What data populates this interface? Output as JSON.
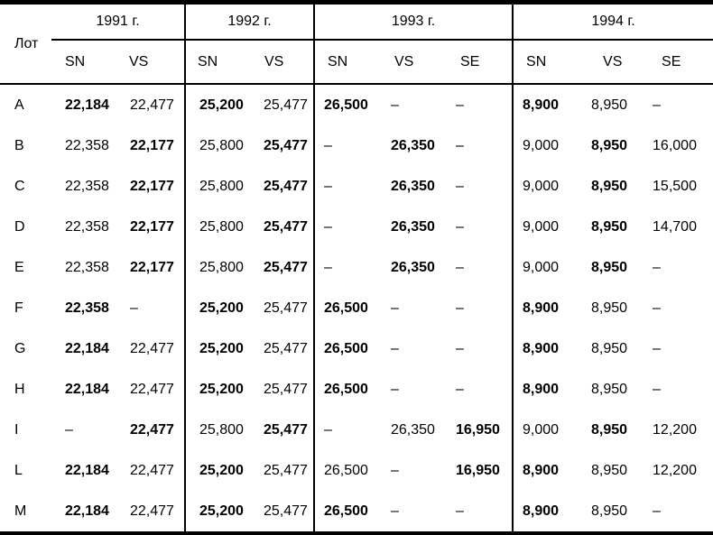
{
  "table": {
    "lot_header": "Лот",
    "year_groups": [
      {
        "label": "1991 г.",
        "cols": [
          "SN",
          "VS"
        ]
      },
      {
        "label": "1992 г.",
        "cols": [
          "SN",
          "VS"
        ]
      },
      {
        "label": "1993 г.",
        "cols": [
          "SN",
          "VS",
          "SE"
        ]
      },
      {
        "label": "1994 г.",
        "cols": [
          "SN",
          "VS",
          "SE"
        ]
      }
    ],
    "rows": [
      {
        "lot": "A",
        "cells": [
          {
            "v": "22,184",
            "b": true
          },
          {
            "v": "22,477",
            "b": false
          },
          {
            "v": "25,200",
            "b": true
          },
          {
            "v": "25,477",
            "b": false
          },
          {
            "v": "26,500",
            "b": true
          },
          {
            "v": "–",
            "b": false
          },
          {
            "v": "–",
            "b": false
          },
          {
            "v": "8,900",
            "b": true
          },
          {
            "v": "8,950",
            "b": false
          },
          {
            "v": "–",
            "b": false
          }
        ]
      },
      {
        "lot": "B",
        "cells": [
          {
            "v": "22,358",
            "b": false
          },
          {
            "v": "22,177",
            "b": true
          },
          {
            "v": "25,800",
            "b": false
          },
          {
            "v": "25,477",
            "b": true
          },
          {
            "v": "–",
            "b": false
          },
          {
            "v": "26,350",
            "b": true
          },
          {
            "v": "–",
            "b": false
          },
          {
            "v": "9,000",
            "b": false
          },
          {
            "v": "8,950",
            "b": true
          },
          {
            "v": "16,000",
            "b": false
          }
        ]
      },
      {
        "lot": "C",
        "cells": [
          {
            "v": "22,358",
            "b": false
          },
          {
            "v": "22,177",
            "b": true
          },
          {
            "v": "25,800",
            "b": false
          },
          {
            "v": "25,477",
            "b": true
          },
          {
            "v": "–",
            "b": false
          },
          {
            "v": "26,350",
            "b": true
          },
          {
            "v": "–",
            "b": false
          },
          {
            "v": "9,000",
            "b": false
          },
          {
            "v": "8,950",
            "b": true
          },
          {
            "v": "15,500",
            "b": false
          }
        ]
      },
      {
        "lot": "D",
        "cells": [
          {
            "v": "22,358",
            "b": false
          },
          {
            "v": "22,177",
            "b": true
          },
          {
            "v": "25,800",
            "b": false
          },
          {
            "v": "25,477",
            "b": true
          },
          {
            "v": "–",
            "b": false
          },
          {
            "v": "26,350",
            "b": true
          },
          {
            "v": "–",
            "b": false
          },
          {
            "v": "9,000",
            "b": false
          },
          {
            "v": "8,950",
            "b": true
          },
          {
            "v": "14,700",
            "b": false
          }
        ]
      },
      {
        "lot": "E",
        "cells": [
          {
            "v": "22,358",
            "b": false
          },
          {
            "v": "22,177",
            "b": true
          },
          {
            "v": "25,800",
            "b": false
          },
          {
            "v": "25,477",
            "b": true
          },
          {
            "v": "–",
            "b": false
          },
          {
            "v": "26,350",
            "b": true
          },
          {
            "v": "–",
            "b": false
          },
          {
            "v": "9,000",
            "b": false
          },
          {
            "v": "8,950",
            "b": true
          },
          {
            "v": "–",
            "b": false
          }
        ]
      },
      {
        "lot": "F",
        "cells": [
          {
            "v": "22,358",
            "b": true
          },
          {
            "v": "–",
            "b": false
          },
          {
            "v": "25,200",
            "b": true
          },
          {
            "v": "25,477",
            "b": false
          },
          {
            "v": "26,500",
            "b": true
          },
          {
            "v": "–",
            "b": false
          },
          {
            "v": "–",
            "b": false
          },
          {
            "v": "8,900",
            "b": true
          },
          {
            "v": "8,950",
            "b": false
          },
          {
            "v": "–",
            "b": false
          }
        ]
      },
      {
        "lot": "G",
        "cells": [
          {
            "v": "22,184",
            "b": true
          },
          {
            "v": "22,477",
            "b": false
          },
          {
            "v": "25,200",
            "b": true
          },
          {
            "v": "25,477",
            "b": false
          },
          {
            "v": "26,500",
            "b": true
          },
          {
            "v": "–",
            "b": false
          },
          {
            "v": "–",
            "b": false
          },
          {
            "v": "8,900",
            "b": true
          },
          {
            "v": "8,950",
            "b": false
          },
          {
            "v": "–",
            "b": false
          }
        ]
      },
      {
        "lot": "H",
        "cells": [
          {
            "v": "22,184",
            "b": true
          },
          {
            "v": "22,477",
            "b": false
          },
          {
            "v": "25,200",
            "b": true
          },
          {
            "v": "25,477",
            "b": false
          },
          {
            "v": "26,500",
            "b": true
          },
          {
            "v": "–",
            "b": false
          },
          {
            "v": "–",
            "b": false
          },
          {
            "v": "8,900",
            "b": true
          },
          {
            "v": "8,950",
            "b": false
          },
          {
            "v": "–",
            "b": false
          }
        ]
      },
      {
        "lot": "I",
        "cells": [
          {
            "v": "–",
            "b": false
          },
          {
            "v": "22,477",
            "b": true
          },
          {
            "v": "25,800",
            "b": false
          },
          {
            "v": "25,477",
            "b": true
          },
          {
            "v": "–",
            "b": false
          },
          {
            "v": "26,350",
            "b": false
          },
          {
            "v": "16,950",
            "b": true
          },
          {
            "v": "9,000",
            "b": false
          },
          {
            "v": "8,950",
            "b": true
          },
          {
            "v": "12,200",
            "b": false
          }
        ]
      },
      {
        "lot": "L",
        "cells": [
          {
            "v": "22,184",
            "b": true
          },
          {
            "v": "22,477",
            "b": false
          },
          {
            "v": "25,200",
            "b": true
          },
          {
            "v": "25,477",
            "b": false
          },
          {
            "v": "26,500",
            "b": false
          },
          {
            "v": "–",
            "b": false
          },
          {
            "v": "16,950",
            "b": true
          },
          {
            "v": "8,900",
            "b": true
          },
          {
            "v": "8,950",
            "b": false
          },
          {
            "v": "12,200",
            "b": false
          }
        ]
      },
      {
        "lot": "M",
        "cells": [
          {
            "v": "22,184",
            "b": true
          },
          {
            "v": "22,477",
            "b": false
          },
          {
            "v": "25,200",
            "b": true
          },
          {
            "v": "25,477",
            "b": false
          },
          {
            "v": "26,500",
            "b": true
          },
          {
            "v": "–",
            "b": false
          },
          {
            "v": "–",
            "b": false
          },
          {
            "v": "8,900",
            "b": true
          },
          {
            "v": "8,950",
            "b": false
          },
          {
            "v": "–",
            "b": false
          }
        ]
      }
    ]
  }
}
